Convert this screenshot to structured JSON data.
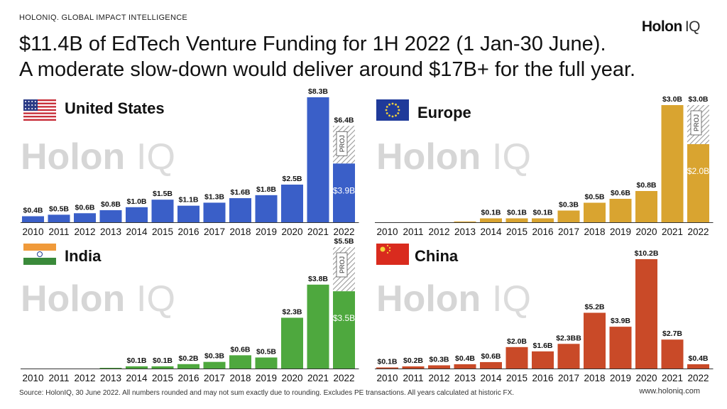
{
  "top_label": "HOLONIQ. GLOBAL IMPACT INTELLIGENCE",
  "logo": {
    "main": "Holon",
    "suffix": "IQ"
  },
  "headline": {
    "line1": "$11.4B of EdTech Venture Funding for 1H 2022 (1 Jan-30 June).",
    "line2": "A moderate slow-down would deliver around $17B+ for the full year."
  },
  "watermark": {
    "main": "Holon",
    "suffix": "IQ"
  },
  "footer": {
    "source": "Source: HolonIQ, 30 June 2022. All numbers rounded and may not sum exactly due to rounding. Excludes PE transactions. All years calculated at historic FX.",
    "url": "www.holoniq.com"
  },
  "colors": {
    "us": "#3a5fc8",
    "europe": "#d9a430",
    "india": "#4ea83e",
    "china": "#c94a28"
  },
  "chart_data": [
    {
      "type": "bar",
      "region": "us",
      "title": "United States",
      "flag": "us-flag",
      "categories": [
        "2010",
        "2011",
        "2012",
        "2013",
        "2014",
        "2015",
        "2016",
        "2017",
        "2018",
        "2019",
        "2020",
        "2021",
        "2022"
      ],
      "values": [
        0.4,
        0.5,
        0.6,
        0.8,
        1.0,
        1.5,
        1.1,
        1.3,
        1.6,
        1.8,
        2.5,
        8.3,
        3.9
      ],
      "labels": [
        "$0.4B",
        "$0.5B",
        "$0.6B",
        "$0.8B",
        "$1.0B",
        "$1.5B",
        "$1.1B",
        "$1.3B",
        "$1.6B",
        "$1.8B",
        "$2.5B",
        "$8.3B",
        "$3.9B"
      ],
      "projection": {
        "value": 6.4,
        "label": "$6.4B",
        "tag": "PROJ"
      },
      "ylim": [
        0,
        8.3
      ]
    },
    {
      "type": "bar",
      "region": "europe",
      "title": "Europe",
      "flag": "eu-flag",
      "categories": [
        "2010",
        "2011",
        "2012",
        "2013",
        "2014",
        "2015",
        "2016",
        "2017",
        "2018",
        "2019",
        "2020",
        "2021",
        "2022"
      ],
      "values": [
        0.0,
        0.0,
        0.0,
        0.02,
        0.1,
        0.1,
        0.1,
        0.3,
        0.5,
        0.6,
        0.8,
        3.0,
        2.0
      ],
      "labels": [
        "",
        "",
        "",
        "",
        "$0.1B",
        "$0.1B",
        "$0.1B",
        "$0.3B",
        "$0.5B",
        "$0.6B",
        "$0.8B",
        "$3.0B",
        "$2.0B"
      ],
      "projection": {
        "value": 3.0,
        "label": "$3.0B",
        "tag": "PROJ"
      },
      "ylim": [
        0,
        3.0
      ]
    },
    {
      "type": "bar",
      "region": "india",
      "title": "India",
      "flag": "in-flag",
      "categories": [
        "2010",
        "2011",
        "2012",
        "2013",
        "2014",
        "2015",
        "2016",
        "2017",
        "2018",
        "2019",
        "2020",
        "2021",
        "2022"
      ],
      "values": [
        0.0,
        0.0,
        0.0,
        0.02,
        0.1,
        0.1,
        0.2,
        0.3,
        0.6,
        0.5,
        2.3,
        3.8,
        3.5
      ],
      "labels": [
        "",
        "",
        "",
        "",
        "$0.1B",
        "$0.1B",
        "$0.2B",
        "$0.3B",
        "$0.6B",
        "$0.5B",
        "$2.3B",
        "$3.8B",
        "$3.5B"
      ],
      "projection": {
        "value": 5.5,
        "label": "$5.5B",
        "tag": "PROJ"
      },
      "ylim": [
        0,
        5.5
      ]
    },
    {
      "type": "bar",
      "region": "china",
      "title": "China",
      "flag": "cn-flag",
      "categories": [
        "2010",
        "2011",
        "2012",
        "2013",
        "2014",
        "2015",
        "2016",
        "2017",
        "2018",
        "2019",
        "2020",
        "2021",
        "2022"
      ],
      "values": [
        0.1,
        0.2,
        0.3,
        0.4,
        0.6,
        2.0,
        1.6,
        2.3,
        5.2,
        3.9,
        10.2,
        2.7,
        0.4
      ],
      "labels": [
        "$0.1B",
        "$0.2B",
        "$0.3B",
        "$0.4B",
        "$0.6B",
        "$2.0B",
        "$1.6B",
        "$2.3BB",
        "$5.2B",
        "$3.9B",
        "$10.2B",
        "$2.7B",
        "$0.4B"
      ],
      "ylim": [
        0,
        10.2
      ]
    }
  ]
}
